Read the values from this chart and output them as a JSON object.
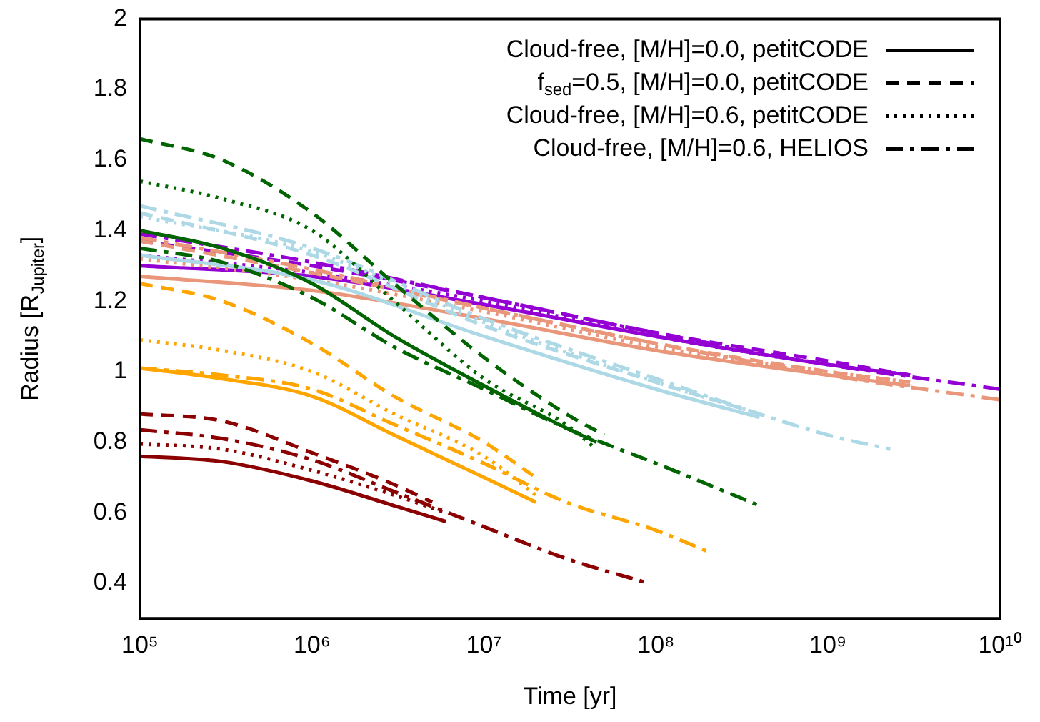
{
  "chart_data": {
    "type": "line",
    "xlabel": "Time [yr]",
    "ylabel": "Radius [R$_{Jupiter}$]",
    "log": "x",
    "xlim": [
      100000,
      10000000000
    ],
    "xticks": [
      {
        "value": 100000,
        "label": "10⁵"
      },
      {
        "value": 1000000,
        "label": "10⁶"
      },
      {
        "value": 10000000,
        "label": "10⁷"
      },
      {
        "value": 100000000,
        "label": "10⁸"
      },
      {
        "value": 1000000000,
        "label": "10⁹"
      },
      {
        "value": 10000000000,
        "label": "10¹⁰"
      }
    ],
    "ylim": [
      0.3,
      2
    ],
    "yticks": [
      0.4,
      0.6,
      0.8,
      1,
      1.2,
      1.4,
      1.6,
      1.8,
      2
    ],
    "grid": false,
    "legend": "top right",
    "marker": "none",
    "series": [
      {
        "color": "#8b0000",
        "line_style": "solid",
        "x": [
          100000,
          300000,
          1000000,
          3000000,
          6000000
        ],
        "values": [
          0.76,
          0.745,
          0.69,
          0.62,
          0.575
        ]
      },
      {
        "color": "#8b0000",
        "line_style": "dotted",
        "x": [
          100000,
          300000,
          1000000,
          3000000,
          6000000
        ],
        "values": [
          0.795,
          0.78,
          0.72,
          0.65,
          0.6
        ]
      },
      {
        "color": "#8b0000",
        "line_style": "dashed",
        "x": [
          100000,
          300000,
          1000000,
          3000000,
          5000000
        ],
        "values": [
          0.88,
          0.86,
          0.77,
          0.68,
          0.63
        ]
      },
      {
        "color": "#8b0000",
        "line_style": "dashdot",
        "x": [
          100000,
          300000,
          1000000,
          3000000,
          10000000,
          30000000,
          90000000
        ],
        "values": [
          0.835,
          0.81,
          0.75,
          0.66,
          0.56,
          0.47,
          0.4
        ]
      },
      {
        "color": "#ffa500",
        "line_style": "solid",
        "x": [
          100000,
          300000,
          1000000,
          3000000,
          10000000,
          20000000
        ],
        "values": [
          1.01,
          0.98,
          0.93,
          0.82,
          0.7,
          0.63
        ]
      },
      {
        "color": "#ffa500",
        "line_style": "dotted",
        "x": [
          100000,
          300000,
          1000000,
          3000000,
          10000000,
          20000000
        ],
        "values": [
          1.09,
          1.06,
          1.0,
          0.88,
          0.76,
          0.65
        ]
      },
      {
        "color": "#ffa500",
        "line_style": "dashed",
        "x": [
          100000,
          300000,
          1000000,
          3000000,
          10000000,
          20000000
        ],
        "values": [
          1.25,
          1.2,
          1.08,
          0.93,
          0.8,
          0.7
        ]
      },
      {
        "color": "#ffa500",
        "line_style": "dashdot",
        "x": [
          100000,
          300000,
          1000000,
          3000000,
          10000000,
          30000000,
          100000000,
          200000000
        ],
        "values": [
          1.01,
          0.99,
          0.95,
          0.85,
          0.74,
          0.63,
          0.55,
          0.49
        ]
      },
      {
        "color": "#006400",
        "line_style": "solid",
        "x": [
          100000,
          300000,
          1000000,
          3000000,
          10000000,
          30000000,
          45000000
        ],
        "values": [
          1.4,
          1.35,
          1.25,
          1.1,
          0.96,
          0.84,
          0.8
        ]
      },
      {
        "color": "#006400",
        "line_style": "dotted",
        "x": [
          100000,
          300000,
          1000000,
          3000000,
          10000000,
          30000000,
          45000000
        ],
        "values": [
          1.54,
          1.49,
          1.4,
          1.2,
          0.98,
          0.85,
          0.78
        ]
      },
      {
        "color": "#006400",
        "line_style": "dashed",
        "x": [
          100000,
          300000,
          1000000,
          3000000,
          10000000,
          30000000,
          50000000
        ],
        "values": [
          1.66,
          1.6,
          1.45,
          1.25,
          1.04,
          0.88,
          0.82
        ]
      },
      {
        "color": "#006400",
        "line_style": "dashdot",
        "x": [
          100000,
          300000,
          1000000,
          3000000,
          10000000,
          30000000,
          100000000,
          400000000
        ],
        "values": [
          1.35,
          1.31,
          1.21,
          1.07,
          0.95,
          0.84,
          0.74,
          0.62
        ]
      },
      {
        "color": "#add8e6",
        "line_style": "solid",
        "x": [
          100000,
          1000000,
          10000000,
          100000000,
          400000000
        ],
        "values": [
          1.33,
          1.26,
          1.1,
          0.95,
          0.87
        ]
      },
      {
        "color": "#add8e6",
        "line_style": "dotted",
        "x": [
          100000,
          1000000,
          10000000,
          100000000,
          400000000
        ],
        "values": [
          1.44,
          1.34,
          1.14,
          0.97,
          0.88
        ]
      },
      {
        "color": "#add8e6",
        "line_style": "dashed",
        "x": [
          100000,
          1000000,
          10000000,
          100000000,
          400000000
        ],
        "values": [
          1.45,
          1.33,
          1.13,
          0.97,
          0.88
        ]
      },
      {
        "color": "#add8e6",
        "line_style": "dashdot",
        "x": [
          100000,
          1000000,
          10000000,
          100000000,
          1000000000,
          2300000000
        ],
        "values": [
          1.47,
          1.35,
          1.15,
          0.98,
          0.82,
          0.78
        ]
      },
      {
        "color": "#e9967a",
        "line_style": "solid",
        "x": [
          100000,
          1000000,
          10000000,
          100000000,
          1000000000,
          3000000000
        ],
        "values": [
          1.27,
          1.23,
          1.15,
          1.06,
          0.99,
          0.96
        ]
      },
      {
        "color": "#e9967a",
        "line_style": "dotted",
        "x": [
          100000,
          1000000,
          10000000,
          100000000,
          1000000000,
          3000000000
        ],
        "values": [
          1.32,
          1.26,
          1.17,
          1.07,
          1.0,
          0.97
        ]
      },
      {
        "color": "#e9967a",
        "line_style": "dashed",
        "x": [
          100000,
          1000000,
          10000000,
          100000000,
          1000000000,
          3000000000
        ],
        "values": [
          1.37,
          1.28,
          1.18,
          1.08,
          1.0,
          0.97
        ]
      },
      {
        "color": "#e9967a",
        "line_style": "dashdot",
        "x": [
          100000,
          1000000,
          10000000,
          100000000,
          1000000000,
          10000000000
        ],
        "values": [
          1.38,
          1.29,
          1.18,
          1.08,
          0.99,
          0.92
        ]
      },
      {
        "color": "#9400d3",
        "line_style": "solid",
        "x": [
          100000,
          1000000,
          10000000,
          100000000,
          1000000000,
          3000000000
        ],
        "values": [
          1.3,
          1.27,
          1.19,
          1.1,
          1.02,
          0.99
        ]
      },
      {
        "color": "#9400d3",
        "line_style": "dotted",
        "x": [
          100000,
          1000000,
          10000000,
          100000000,
          1000000000,
          3000000000
        ],
        "values": [
          1.33,
          1.28,
          1.2,
          1.1,
          1.02,
          0.99
        ]
      },
      {
        "color": "#9400d3",
        "line_style": "dashed",
        "x": [
          100000,
          1000000,
          10000000,
          100000000,
          1000000000,
          3000000000
        ],
        "values": [
          1.37,
          1.3,
          1.21,
          1.11,
          1.03,
          0.99
        ]
      },
      {
        "color": "#9400d3",
        "line_style": "dashdot",
        "x": [
          100000,
          1000000,
          10000000,
          100000000,
          1000000000,
          10000000000
        ],
        "values": [
          1.39,
          1.31,
          1.21,
          1.11,
          1.02,
          0.95
        ]
      },
      {
        "name": "Cloud-free, [M/H]=0.0, petitCODE",
        "color": "#000000",
        "line_style": "solid"
      },
      {
        "name": "f$_{sed}$=0.5, [M/H]=0.0, petitCODE",
        "color": "#000000",
        "line_style": "dashed"
      },
      {
        "name": "Cloud-free, [M/H]=0.6, petitCODE",
        "color": "#000000",
        "line_style": "dotted"
      },
      {
        "name": "Cloud-free, [M/H]=0.6, HELIOS",
        "color": "#000000",
        "line_style": "dashdot"
      }
    ]
  }
}
